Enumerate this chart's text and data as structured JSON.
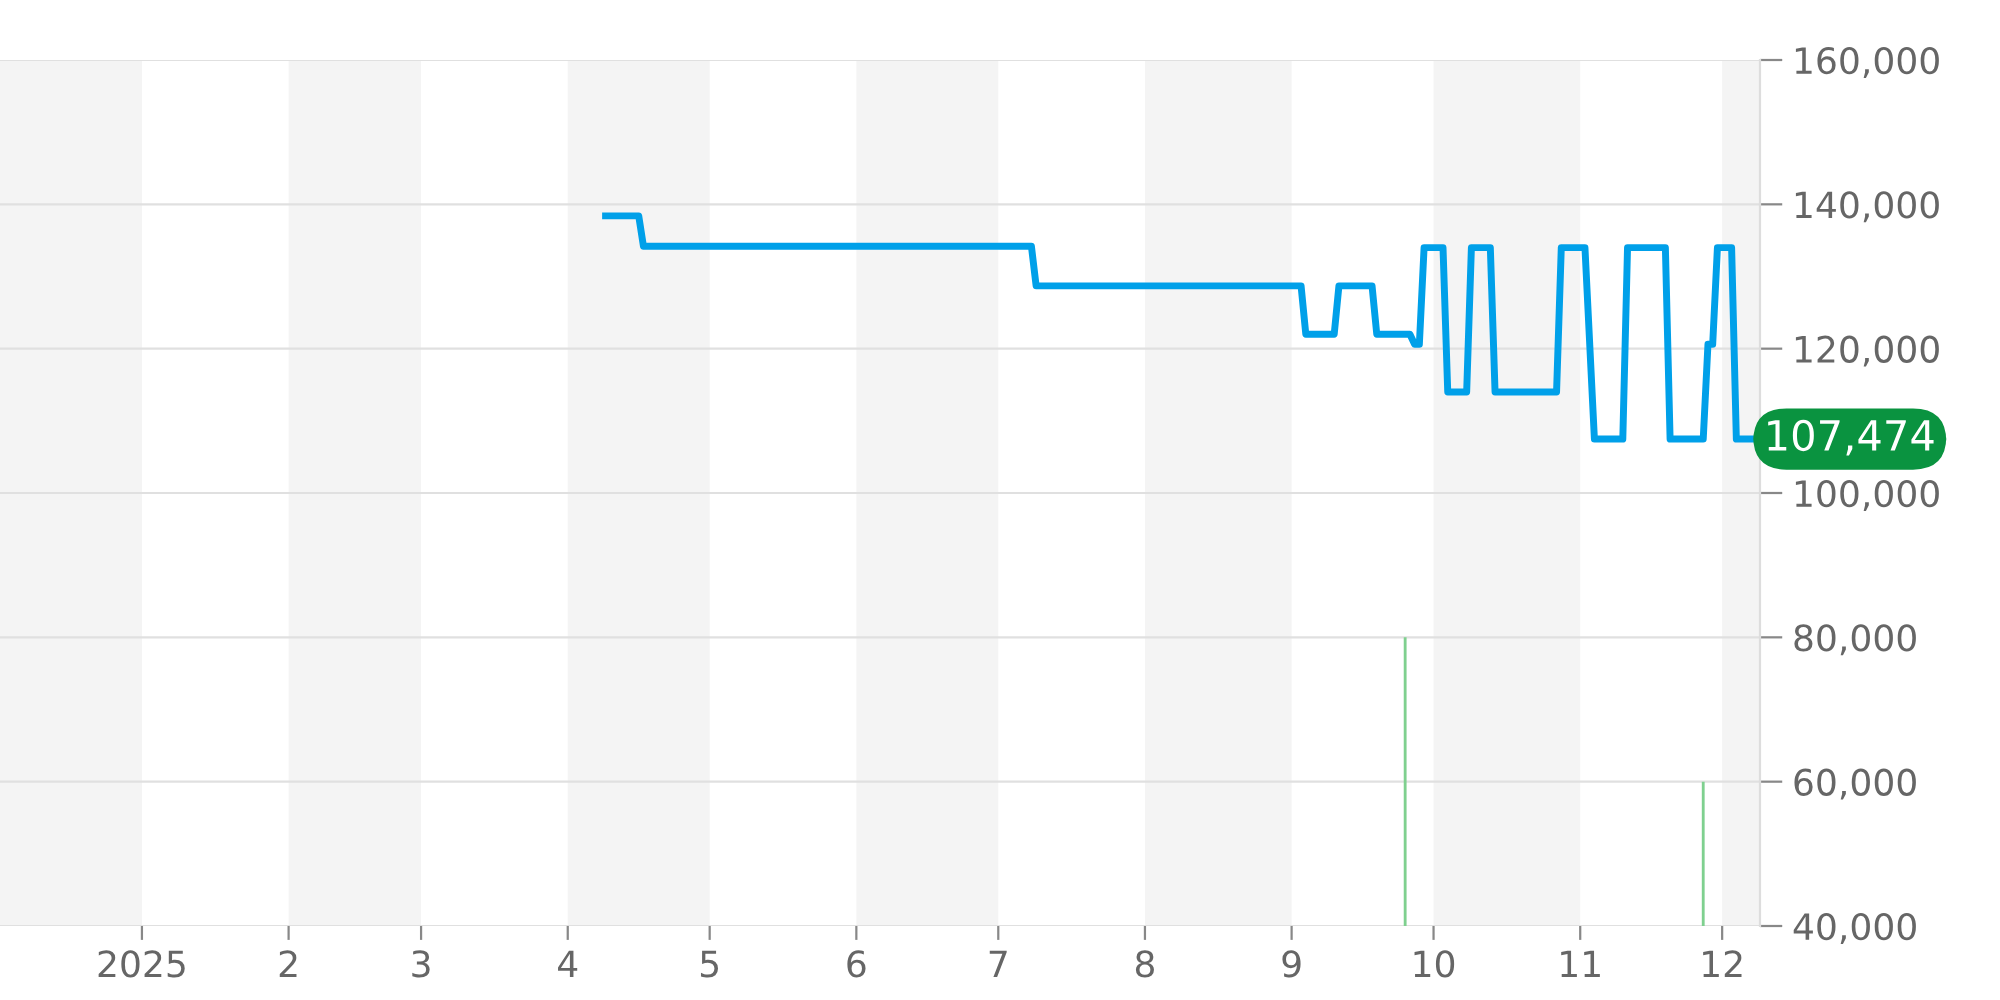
{
  "chart_data": {
    "type": "line",
    "xlim": [
      "2024-12-02",
      "2025-12-09"
    ],
    "xticks": [
      {
        "value": "2025-01-01",
        "label": "2025"
      },
      {
        "value": "2025-02-01",
        "label": "2"
      },
      {
        "value": "2025-03-01",
        "label": "3"
      },
      {
        "value": "2025-04-01",
        "label": "4"
      },
      {
        "value": "2025-05-01",
        "label": "5"
      },
      {
        "value": "2025-06-01",
        "label": "6"
      },
      {
        "value": "2025-07-01",
        "label": "7"
      },
      {
        "value": "2025-08-01",
        "label": "8"
      },
      {
        "value": "2025-09-01",
        "label": "9"
      },
      {
        "value": "2025-10-01",
        "label": "10"
      },
      {
        "value": "2025-11-01",
        "label": "11"
      },
      {
        "value": "2025-12-01",
        "label": "12"
      }
    ],
    "ylim": [
      40000,
      160000
    ],
    "yticks": [
      {
        "value": 40000,
        "label": "40,000"
      },
      {
        "value": 60000,
        "label": "60,000"
      },
      {
        "value": 80000,
        "label": "80,000"
      },
      {
        "value": 100000,
        "label": "100,000"
      },
      {
        "value": 120000,
        "label": "120,000"
      },
      {
        "value": 140000,
        "label": "140,000"
      },
      {
        "value": 160000,
        "label": "160,000"
      }
    ],
    "grid": "y",
    "legend": false,
    "bands": [
      {
        "axis": "x",
        "from": "2024-12-02",
        "to": "2025-01-01",
        "color": "#f4f4f4"
      },
      {
        "axis": "x",
        "from": "2025-02-01",
        "to": "2025-03-01",
        "color": "#f4f4f4"
      },
      {
        "axis": "x",
        "from": "2025-04-01",
        "to": "2025-05-01",
        "color": "#f4f4f4"
      },
      {
        "axis": "x",
        "from": "2025-06-01",
        "to": "2025-07-01",
        "color": "#f4f4f4"
      },
      {
        "axis": "x",
        "from": "2025-08-01",
        "to": "2025-09-01",
        "color": "#f4f4f4"
      },
      {
        "axis": "x",
        "from": "2025-10-01",
        "to": "2025-11-01",
        "color": "#f4f4f4"
      },
      {
        "axis": "x",
        "from": "2025-12-01",
        "to": "2025-12-09",
        "color": "#f4f4f4"
      }
    ],
    "annotations": [
      {
        "text": "107,474",
        "x": "2025-12-08",
        "y": 107474
      }
    ],
    "series": [
      {
        "color": "#00a0e9",
        "x": [
          "2025-04-09",
          "2025-04-16",
          "2025-04-17",
          "2025-07-08",
          "2025-07-09",
          "2025-09-03",
          "2025-09-04",
          "2025-09-10",
          "2025-09-11",
          "2025-09-18",
          "2025-09-19",
          "2025-09-26",
          "2025-09-27",
          "2025-09-28",
          "2025-09-29",
          "2025-10-03",
          "2025-10-04",
          "2025-10-08",
          "2025-10-09",
          "2025-10-13",
          "2025-10-14",
          "2025-10-27",
          "2025-10-28",
          "2025-11-02",
          "2025-11-04",
          "2025-11-10",
          "2025-11-11",
          "2025-11-19",
          "2025-11-20",
          "2025-11-27",
          "2025-11-28",
          "2025-11-29",
          "2025-11-30",
          "2025-12-03",
          "2025-12-04",
          "2025-12-08"
        ],
        "values": [
          138400,
          138400,
          134200,
          134200,
          128700,
          128700,
          122000,
          122000,
          128700,
          128700,
          122000,
          122000,
          120600,
          120600,
          134000,
          134000,
          114000,
          114000,
          134000,
          134000,
          114000,
          114000,
          134000,
          134000,
          107474,
          107474,
          134000,
          134000,
          107474,
          107474,
          120600,
          120600,
          134000,
          134000,
          107474,
          107474
        ]
      },
      {
        "type": "bar",
        "color": "#7fd08f",
        "x": [
          "2025-09-25",
          "2025-11-27"
        ],
        "values": [
          80000,
          60000
        ]
      }
    ]
  }
}
